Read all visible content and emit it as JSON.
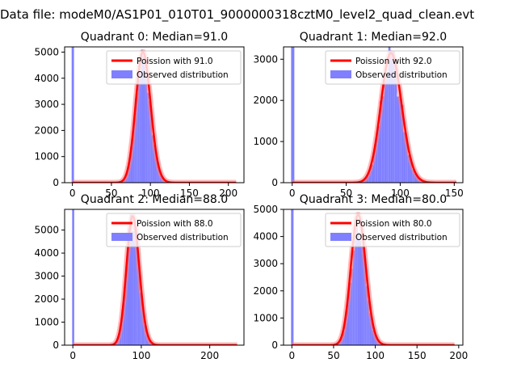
{
  "figure": {
    "suptitle": "Data file: modeM0/AS1P01_010T01_9000000318cztM0_level2_quad_clean.evt"
  },
  "colors": {
    "hist": "#8080ff",
    "poisson": "#ff0000",
    "poisson_glow": "#ff8080",
    "frame": "#000000"
  },
  "chart_data": [
    {
      "type": "bar",
      "title": "Quadrant 0: Median=91.0",
      "median": 91.0,
      "xlim": [
        -10,
        220
      ],
      "ylim": [
        0,
        5200
      ],
      "xticks": [
        0,
        50,
        100,
        150,
        200
      ],
      "yticks": [
        0,
        1000,
        2000,
        3000,
        4000,
        5000
      ],
      "zero_bin_value": 5200,
      "series": [
        {
          "name": "Poission with 91.0",
          "kind": "line",
          "peak": 5000
        },
        {
          "name": "Observed distribution",
          "kind": "hist",
          "bin_start": 50,
          "bin_end": 130,
          "bin_width": 2,
          "peak": 4800
        }
      ],
      "xmax_line": 210,
      "legend": [
        "Poission with 91.0",
        "Observed distribution"
      ]
    },
    {
      "type": "bar",
      "title": "Quadrant 1: Median=92.0",
      "median": 92.0,
      "xlim": [
        -8,
        158
      ],
      "ylim": [
        0,
        3300
      ],
      "xticks": [
        0,
        50,
        100,
        150
      ],
      "yticks": [
        0,
        1000,
        2000,
        3000
      ],
      "zero_bin_value": 3300,
      "series": [
        {
          "name": "Poission with 92.0",
          "kind": "line",
          "peak": 3150
        },
        {
          "name": "Observed distribution",
          "kind": "hist",
          "bin_start": 55,
          "bin_end": 140,
          "bin_width": 2,
          "peak": 3000
        }
      ],
      "xmax_line": 152,
      "legend": [
        "Poission with 92.0",
        "Observed distribution"
      ]
    },
    {
      "type": "bar",
      "title": "Quadrant 2: Median=88.0",
      "median": 88.0,
      "xlim": [
        -12,
        250
      ],
      "ylim": [
        0,
        5900
      ],
      "xticks": [
        0,
        100,
        200
      ],
      "yticks": [
        0,
        1000,
        2000,
        3000,
        4000,
        5000
      ],
      "zero_bin_value": 5900,
      "series": [
        {
          "name": "Poission with 88.0",
          "kind": "line",
          "peak": 5600
        },
        {
          "name": "Observed distribution",
          "kind": "hist",
          "bin_start": 50,
          "bin_end": 130,
          "bin_width": 3,
          "peak": 5400
        }
      ],
      "xmax_line": 240,
      "legend": [
        "Poission with 88.0",
        "Observed distribution"
      ]
    },
    {
      "type": "bar",
      "title": "Quadrant 3: Median=80.0",
      "median": 80.0,
      "xlim": [
        -10,
        205
      ],
      "ylim": [
        0,
        5000
      ],
      "xticks": [
        0,
        50,
        100,
        150,
        200
      ],
      "yticks": [
        0,
        1000,
        2000,
        3000,
        4000,
        5000
      ],
      "zero_bin_value": 5000,
      "series": [
        {
          "name": "Poission with 80.0",
          "kind": "line",
          "peak": 4800
        },
        {
          "name": "Observed distribution",
          "kind": "hist",
          "bin_start": 45,
          "bin_end": 120,
          "bin_width": 2,
          "peak": 4600
        }
      ],
      "xmax_line": 195,
      "legend": [
        "Poission with 80.0",
        "Observed distribution"
      ]
    }
  ]
}
